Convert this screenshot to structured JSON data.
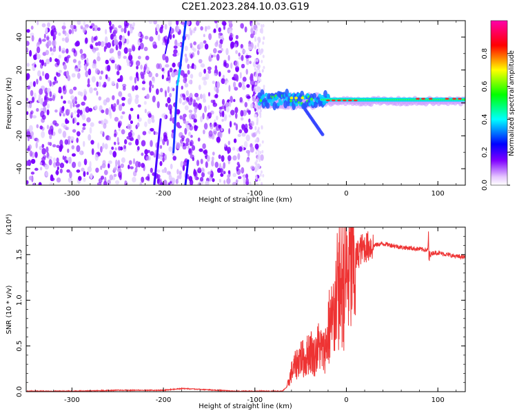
{
  "title": "C2E1.2023.284.10.03.G19",
  "chart_data": [
    {
      "type": "heatmap",
      "xlabel": "Height of straight line (km)",
      "ylabel": "Frequency (Hz)",
      "xlim": [
        -350,
        130
      ],
      "ylim": [
        -50,
        50
      ],
      "x_ticks": [
        "-300",
        "-200",
        "-100",
        "0",
        "100"
      ],
      "y_ticks": [
        "-40",
        "-20",
        "0",
        "20",
        "40"
      ],
      "colorbar": {
        "label": "Normalized spectral amplitude",
        "range": [
          0.0,
          1.0
        ],
        "ticks": [
          "0.0",
          "0.2",
          "0.4",
          "0.6",
          "0.8"
        ],
        "colors": [
          "#ffffff",
          "#8000ff",
          "#0000ff",
          "#00ffff",
          "#00ff00",
          "#ffff00",
          "#ff0000",
          "#ff00ff"
        ]
      }
    },
    {
      "type": "line",
      "xlabel": "Height of straight line (km)",
      "ylabel": "SNR (10 * v/v)",
      "scale_label": "(x10⁴)",
      "xlim": [
        -350,
        130
      ],
      "ylim": [
        0,
        1.8
      ],
      "x_ticks": [
        "-300",
        "-200",
        "-100",
        "0",
        "100"
      ],
      "y_ticks": [
        "0.0",
        "0.5",
        "1.0",
        "1.5"
      ],
      "color": "#ee3333",
      "series": [
        {
          "x": [
            -350,
            -300,
            -250,
            -200,
            -180,
            -160,
            -120,
            -100,
            -80,
            -70,
            -65,
            -60,
            -55,
            -50,
            -45,
            -40,
            -35,
            -30,
            -25,
            -20,
            -15,
            -12,
            -10,
            -5,
            0,
            5,
            10,
            15,
            20,
            30,
            40,
            50,
            60,
            70,
            80,
            88,
            90,
            92,
            95,
            100,
            110,
            120,
            130
          ],
          "y": [
            0.0,
            0.0,
            0.01,
            0.01,
            0.03,
            0.02,
            0.0,
            0.0,
            0.0,
            0.0,
            0.05,
            0.25,
            0.35,
            0.45,
            0.4,
            0.55,
            0.45,
            0.6,
            0.5,
            0.7,
            0.8,
            1.0,
            1.1,
            1.2,
            1.3,
            1.4,
            1.45,
            1.55,
            1.58,
            1.6,
            1.62,
            1.6,
            1.58,
            1.57,
            1.56,
            1.55,
            1.55,
            1.5,
            1.52,
            1.52,
            1.5,
            1.48,
            1.47
          ]
        }
      ]
    }
  ]
}
